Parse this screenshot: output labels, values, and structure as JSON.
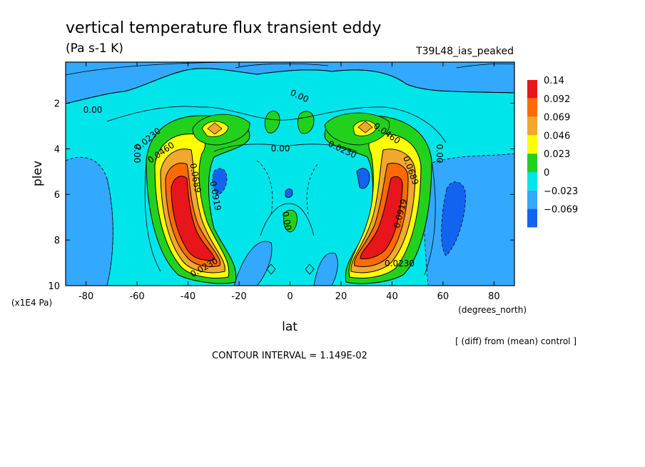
{
  "chart_data": {
    "type": "heatmap",
    "title": "vertical temperature flux transient eddy",
    "subtitle": "(Pa s-1 K)",
    "run_label": "T39L48_ias_peaked",
    "xlabel": "lat",
    "x_units": "(degrees_north)",
    "ylabel": "plev",
    "y_units": "(x1E4 Pa)",
    "xlim": [
      -88,
      88
    ],
    "ylim": [
      0.2,
      10
    ],
    "y_reversed": true,
    "x_ticks": [
      -80,
      -60,
      -40,
      -20,
      0,
      20,
      40,
      60,
      80
    ],
    "x_tick_labels": [
      "-80",
      "-60",
      "-40",
      "-20",
      "0",
      "20",
      "40",
      "60",
      "80"
    ],
    "y_ticks": [
      2,
      4,
      6,
      8,
      10
    ],
    "y_tick_labels": [
      "2",
      "4",
      "6",
      "8",
      "10"
    ],
    "contour_interval_text": "CONTOUR INTERVAL = 1.149E-02",
    "note": "[ (diff) from (mean) control ]",
    "colorbar": {
      "labels": [
        "0.14",
        "0.092",
        "0.069",
        "0.046",
        "0.023",
        "0",
        "-0.023",
        "-0.069"
      ],
      "colors": [
        "#e8161a",
        "#ff6a00",
        "#f2a72d",
        "#ffff00",
        "#22d11c",
        "#00e5ea",
        "#33a8ff",
        "#1264f0"
      ]
    },
    "contour_labels": [
      "0.00",
      "0.00",
      "0.00",
      "0.0230",
      "0.0460",
      "0.0689",
      "0.0919",
      "0.00",
      "0.0230",
      "0.0460",
      "0.0689",
      "0.0919",
      "0.0230",
      "0.0230",
      "0.00",
      "0.00"
    ],
    "features": [
      {
        "name": "southern-jet-maximum",
        "lat": -37,
        "plev": 7.5,
        "value": 0.14
      },
      {
        "name": "northern-jet-maximum",
        "lat": 38,
        "plev": 7.3,
        "value": 0.14
      },
      {
        "name": "southern-upper-max",
        "lat": -31,
        "plev": 3.0,
        "value": 0.069
      },
      {
        "name": "northern-upper-max",
        "lat": 31,
        "plev": 3.0,
        "value": 0.069
      },
      {
        "name": "equatorial-green",
        "lat": 0,
        "plev": 7.0,
        "value": 0.023
      },
      {
        "name": "southern-negative-cell",
        "lat": -28,
        "plev": 5.5,
        "value": -0.023
      },
      {
        "name": "northern-negative-cell",
        "lat": 65,
        "plev": 7.0,
        "value": -0.023
      }
    ]
  }
}
